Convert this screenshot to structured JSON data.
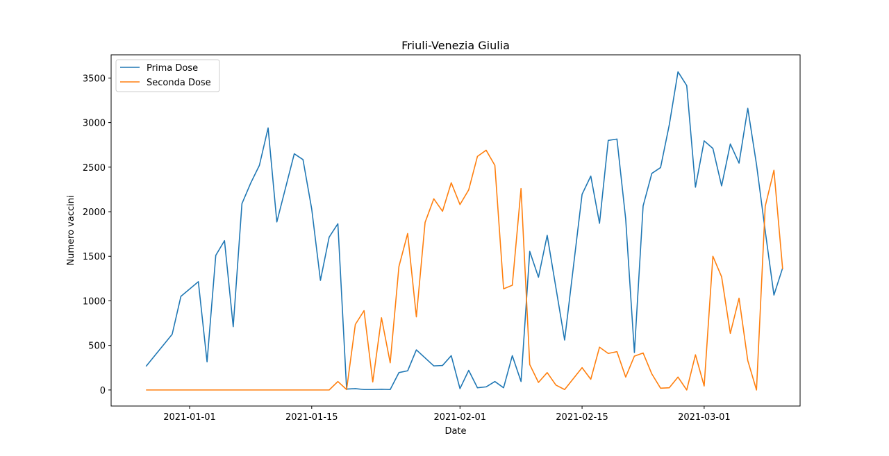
{
  "chart_data": {
    "type": "line",
    "title": "Friuli-Venezia Giulia",
    "xlabel": "Date",
    "ylabel": "Numero vaccini",
    "x_type": "date",
    "xlim": [
      "2021-12-23",
      "2021-03-12"
    ],
    "ylim": [
      -180,
      3760
    ],
    "x_ticks": [
      "2021-01-01",
      "2021-01-15",
      "2021-02-01",
      "2021-02-15",
      "2021-03-01"
    ],
    "y_ticks": [
      0,
      500,
      1000,
      1500,
      2000,
      2500,
      3000,
      3500
    ],
    "grid": false,
    "legend": {
      "position": "top-left"
    },
    "series": [
      {
        "name": "Prima Dose",
        "color": "#1f77b4",
        "points": [
          [
            "2020-12-27",
            265
          ],
          [
            "2020-12-30",
            625
          ],
          [
            "2020-12-31",
            1050
          ],
          [
            "2021-01-02",
            1215
          ],
          [
            "2021-01-03",
            315
          ],
          [
            "2021-01-04",
            1510
          ],
          [
            "2021-01-05",
            1675
          ],
          [
            "2021-01-06",
            710
          ],
          [
            "2021-01-07",
            2090
          ],
          [
            "2021-01-08",
            2320
          ],
          [
            "2021-01-09",
            2520
          ],
          [
            "2021-01-10",
            2940
          ],
          [
            "2021-01-11",
            1885
          ],
          [
            "2021-01-13",
            2650
          ],
          [
            "2021-01-14",
            2585
          ],
          [
            "2021-01-15",
            2030
          ],
          [
            "2021-01-16",
            1230
          ],
          [
            "2021-01-17",
            1715
          ],
          [
            "2021-01-18",
            1865
          ],
          [
            "2021-01-19",
            10
          ],
          [
            "2021-01-20",
            15
          ],
          [
            "2021-01-21",
            5
          ],
          [
            "2021-01-22",
            5
          ],
          [
            "2021-01-23",
            8
          ],
          [
            "2021-01-24",
            5
          ],
          [
            "2021-01-25",
            195
          ],
          [
            "2021-01-26",
            215
          ],
          [
            "2021-01-27",
            450
          ],
          [
            "2021-01-29",
            270
          ],
          [
            "2021-01-30",
            275
          ],
          [
            "2021-01-31",
            385
          ],
          [
            "2021-02-01",
            15
          ],
          [
            "2021-02-02",
            220
          ],
          [
            "2021-02-03",
            25
          ],
          [
            "2021-02-04",
            35
          ],
          [
            "2021-02-05",
            95
          ],
          [
            "2021-02-06",
            25
          ],
          [
            "2021-02-07",
            385
          ],
          [
            "2021-02-08",
            95
          ],
          [
            "2021-02-09",
            1555
          ],
          [
            "2021-02-10",
            1265
          ],
          [
            "2021-02-11",
            1735
          ],
          [
            "2021-02-13",
            560
          ],
          [
            "2021-02-15",
            2195
          ],
          [
            "2021-02-16",
            2400
          ],
          [
            "2021-02-17",
            1870
          ],
          [
            "2021-02-18",
            2800
          ],
          [
            "2021-02-19",
            2815
          ],
          [
            "2021-02-20",
            1920
          ],
          [
            "2021-02-21",
            420
          ],
          [
            "2021-02-22",
            2065
          ],
          [
            "2021-02-23",
            2430
          ],
          [
            "2021-02-24",
            2495
          ],
          [
            "2021-02-25",
            2975
          ],
          [
            "2021-02-26",
            3570
          ],
          [
            "2021-02-27",
            3415
          ],
          [
            "2021-02-28",
            2275
          ],
          [
            "2021-03-01",
            2795
          ],
          [
            "2021-03-02",
            2710
          ],
          [
            "2021-03-03",
            2290
          ],
          [
            "2021-03-04",
            2760
          ],
          [
            "2021-03-05",
            2545
          ],
          [
            "2021-03-06",
            3160
          ],
          [
            "2021-03-07",
            2530
          ],
          [
            "2021-03-08",
            1785
          ],
          [
            "2021-03-09",
            1065
          ],
          [
            "2021-03-10",
            1370
          ]
        ]
      },
      {
        "name": "Seconda Dose",
        "color": "#ff7f0e",
        "points": [
          [
            "2020-12-27",
            0
          ],
          [
            "2021-01-17",
            0
          ],
          [
            "2021-01-18",
            95
          ],
          [
            "2021-01-19",
            5
          ],
          [
            "2021-01-20",
            735
          ],
          [
            "2021-01-21",
            890
          ],
          [
            "2021-01-22",
            90
          ],
          [
            "2021-01-23",
            810
          ],
          [
            "2021-01-24",
            305
          ],
          [
            "2021-01-25",
            1385
          ],
          [
            "2021-01-26",
            1755
          ],
          [
            "2021-01-27",
            820
          ],
          [
            "2021-01-28",
            1880
          ],
          [
            "2021-01-29",
            2145
          ],
          [
            "2021-01-30",
            2005
          ],
          [
            "2021-01-31",
            2325
          ],
          [
            "2021-02-01",
            2080
          ],
          [
            "2021-02-02",
            2245
          ],
          [
            "2021-02-03",
            2620
          ],
          [
            "2021-02-04",
            2690
          ],
          [
            "2021-02-05",
            2520
          ],
          [
            "2021-02-06",
            1135
          ],
          [
            "2021-02-07",
            1175
          ],
          [
            "2021-02-08",
            2260
          ],
          [
            "2021-02-09",
            285
          ],
          [
            "2021-02-10",
            85
          ],
          [
            "2021-02-11",
            195
          ],
          [
            "2021-02-12",
            55
          ],
          [
            "2021-02-13",
            5
          ],
          [
            "2021-02-15",
            250
          ],
          [
            "2021-02-16",
            120
          ],
          [
            "2021-02-17",
            480
          ],
          [
            "2021-02-18",
            410
          ],
          [
            "2021-02-19",
            430
          ],
          [
            "2021-02-20",
            145
          ],
          [
            "2021-02-21",
            380
          ],
          [
            "2021-02-22",
            415
          ],
          [
            "2021-02-23",
            180
          ],
          [
            "2021-02-24",
            20
          ],
          [
            "2021-02-25",
            25
          ],
          [
            "2021-02-26",
            145
          ],
          [
            "2021-02-27",
            0
          ],
          [
            "2021-02-28",
            395
          ],
          [
            "2021-03-01",
            45
          ],
          [
            "2021-03-02",
            1500
          ],
          [
            "2021-03-03",
            1270
          ],
          [
            "2021-03-04",
            635
          ],
          [
            "2021-03-05",
            1030
          ],
          [
            "2021-03-06",
            330
          ],
          [
            "2021-03-07",
            0
          ],
          [
            "2021-03-08",
            2060
          ],
          [
            "2021-03-09",
            2465
          ],
          [
            "2021-03-10",
            1355
          ]
        ]
      }
    ]
  }
}
